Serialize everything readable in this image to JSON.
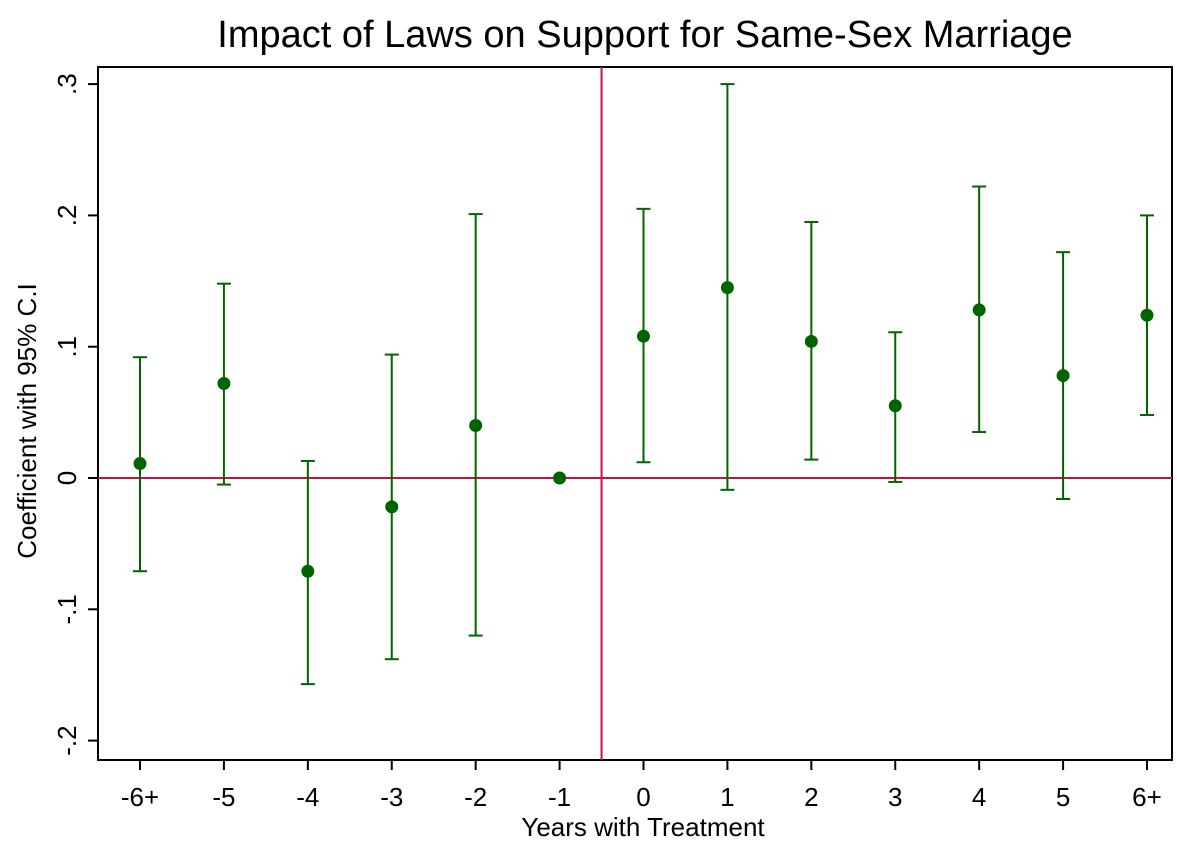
{
  "chart_data": {
    "type": "scatter",
    "title": "Impact of Laws on Support for Same-Sex Marriage",
    "xlabel": "Years with Treatment",
    "ylabel": "Coefficient with 95% C.I",
    "categories": [
      "-6+",
      "-5",
      "-4",
      "-3",
      "-2",
      "-1",
      "0",
      "1",
      "2",
      "3",
      "4",
      "5",
      "6+"
    ],
    "series": [
      {
        "values": [
          0.011,
          0.072,
          -0.071,
          -0.022,
          0.04,
          0.0,
          0.108,
          0.145,
          0.104,
          0.055,
          0.128,
          0.078,
          0.124
        ],
        "ci_lower": [
          -0.071,
          -0.005,
          -0.157,
          -0.138,
          -0.12,
          0.0,
          0.012,
          -0.009,
          0.014,
          -0.003,
          0.035,
          -0.016,
          0.048
        ],
        "ci_upper": [
          0.092,
          0.148,
          0.013,
          0.094,
          0.201,
          0.0,
          0.205,
          0.3,
          0.195,
          0.111,
          0.222,
          0.172,
          0.2
        ]
      }
    ],
    "yticks": [
      ".3",
      ".2",
      ".1",
      "0",
      "-.1",
      "-.2"
    ],
    "ylim": [
      -0.215,
      0.315
    ],
    "reference_lines": {
      "y": 0,
      "x_between": [
        "-1",
        "0"
      ]
    },
    "colors": {
      "points": "#006400",
      "error_bars": "#006400",
      "reference": "#c8103e"
    },
    "grid": false
  }
}
